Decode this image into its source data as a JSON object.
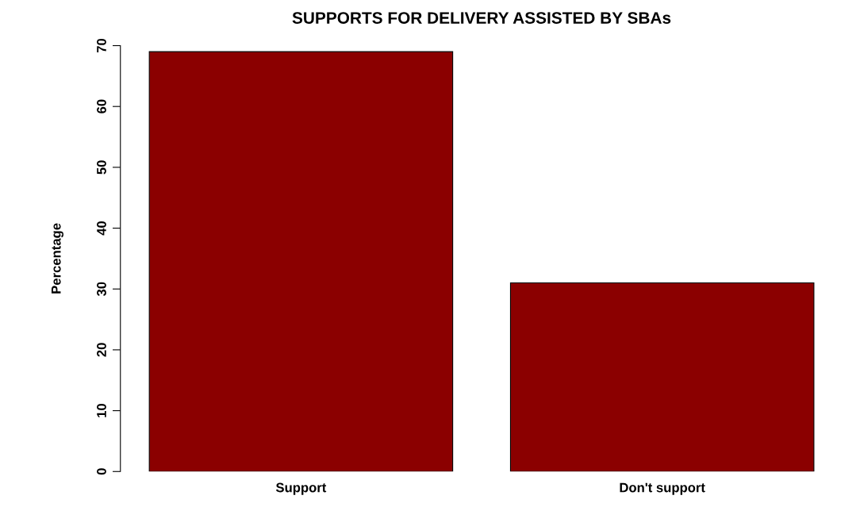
{
  "chart_data": {
    "type": "bar",
    "title": "SUPPORTS FOR DELIVERY ASSISTED BY SBAs",
    "ylabel": "Percentage",
    "categories": [
      "Support",
      "Don't support"
    ],
    "series": [
      {
        "color": "#8b0000",
        "values": [
          69,
          31
        ]
      }
    ],
    "ylim": [
      0,
      70
    ],
    "yticks": [
      0,
      10,
      20,
      30,
      40,
      50,
      60,
      70
    ],
    "grid": false,
    "legend": false
  }
}
